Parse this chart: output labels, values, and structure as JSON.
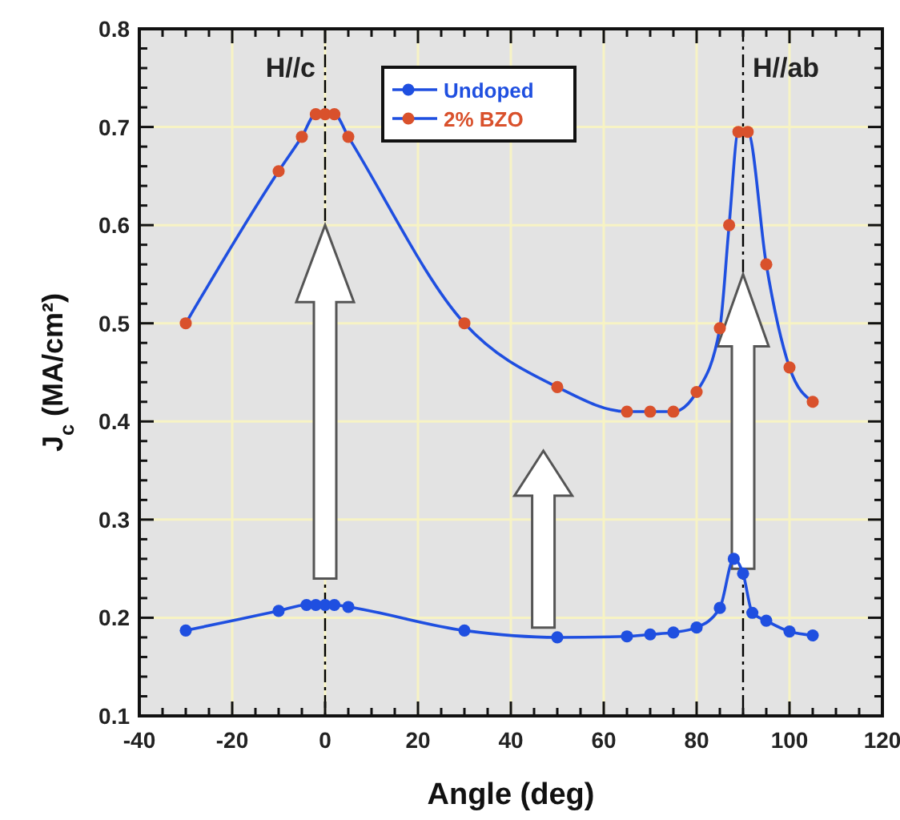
{
  "chart_data": {
    "type": "line",
    "xlabel": "Angle (deg)",
    "ylabel": "J$_{c}$ (MA/cm²)",
    "xlim": [
      -40,
      120
    ],
    "xticks": [
      -40,
      -20,
      0,
      20,
      40,
      60,
      80,
      100,
      120
    ],
    "ylim": [
      0.1,
      0.8
    ],
    "yticks": [
      0.1,
      0.2,
      0.3,
      0.4,
      0.5,
      0.6,
      0.7,
      0.8
    ],
    "grid": true,
    "legend": "top",
    "marker": "circle",
    "line_style": "solid",
    "series": [
      {
        "name": "Undoped",
        "color": "#1f4fe0",
        "x": [
          -30,
          -10,
          -4,
          -2,
          0,
          2,
          5,
          30,
          50,
          65,
          70,
          75,
          80,
          85,
          88,
          90,
          92,
          95,
          100,
          105
        ],
        "values": [
          0.187,
          0.207,
          0.213,
          0.213,
          0.213,
          0.213,
          0.211,
          0.187,
          0.18,
          0.181,
          0.183,
          0.185,
          0.19,
          0.21,
          0.26,
          0.245,
          0.205,
          0.197,
          0.186,
          0.182
        ]
      },
      {
        "name": "2% BZO",
        "color": "#d9512c",
        "x": [
          -30,
          -10,
          -5,
          -2,
          0,
          2,
          5,
          30,
          50,
          65,
          70,
          75,
          80,
          85,
          87,
          89,
          91,
          95,
          100,
          105
        ],
        "values": [
          0.5,
          0.655,
          0.69,
          0.713,
          0.713,
          0.713,
          0.69,
          0.5,
          0.435,
          0.41,
          0.41,
          0.41,
          0.43,
          0.495,
          0.6,
          0.695,
          0.695,
          0.56,
          0.455,
          0.42
        ]
      }
    ],
    "ref_lines": [
      {
        "axis": "x",
        "value": 0,
        "label": "H//c",
        "color": "#000000",
        "line_style": "dashdot"
      },
      {
        "axis": "x",
        "value": 90,
        "label": "H//ab",
        "color": "#000000",
        "line_style": "dashdot"
      }
    ]
  }
}
